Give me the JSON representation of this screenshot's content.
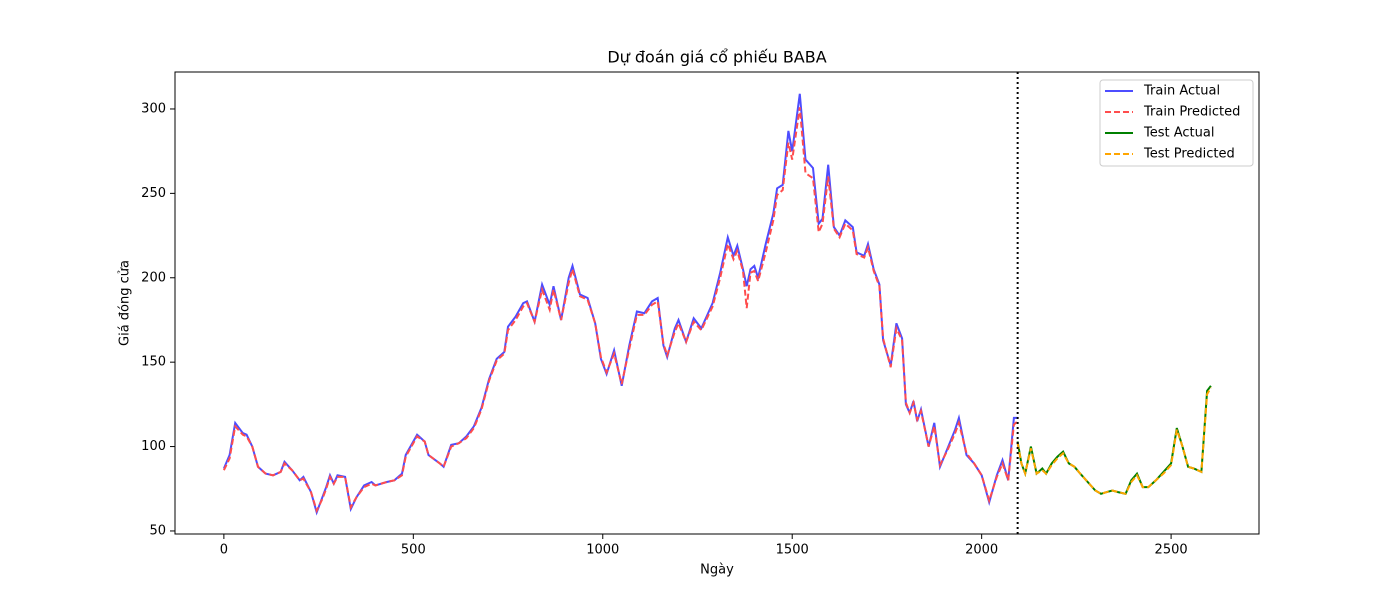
{
  "chart_data": {
    "type": "line",
    "title": "Dự đoán giá cổ phiếu BABA",
    "x_label": "Ngày",
    "y_label": "Giá đóng cửa",
    "xlim": [
      -129,
      2732
    ],
    "ylim": [
      48.2,
      321.9
    ],
    "xticks": [
      0,
      500,
      1000,
      1500,
      2000,
      2500
    ],
    "yticks": [
      50,
      100,
      150,
      200,
      250,
      300
    ],
    "split_x": 2095,
    "legend": "upper right",
    "series": [
      {
        "name": "Train Actual",
        "color": "#4d4dff",
        "style": "solid",
        "x": [
          0,
          15,
          30,
          50,
          60,
          75,
          90,
          110,
          130,
          150,
          160,
          180,
          200,
          210,
          230,
          245,
          260,
          270,
          280,
          290,
          300,
          320,
          335,
          350,
          370,
          390,
          400,
          430,
          450,
          470,
          480,
          500,
          510,
          530,
          540,
          570,
          580,
          600,
          620,
          640,
          660,
          680,
          700,
          720,
          740,
          750,
          770,
          790,
          800,
          820,
          840,
          860,
          870,
          890,
          910,
          920,
          940,
          960,
          980,
          995,
          1010,
          1030,
          1050,
          1070,
          1090,
          1110,
          1130,
          1145,
          1160,
          1170,
          1190,
          1200,
          1220,
          1240,
          1260,
          1290,
          1310,
          1330,
          1345,
          1355,
          1370,
          1380,
          1390,
          1400,
          1410,
          1430,
          1450,
          1460,
          1475,
          1490,
          1500,
          1520,
          1535,
          1555,
          1570,
          1580,
          1595,
          1610,
          1625,
          1640,
          1660,
          1670,
          1690,
          1700,
          1715,
          1730,
          1740,
          1760,
          1775,
          1790,
          1800,
          1810,
          1820,
          1830,
          1840,
          1860,
          1875,
          1890,
          1910,
          1930,
          1940,
          1960,
          1980,
          2000,
          2020,
          2040,
          2055,
          2070,
          2085,
          2095
        ],
        "values": [
          87,
          95,
          114,
          108,
          107,
          100,
          88,
          84,
          83,
          85,
          91,
          86,
          80,
          82,
          73,
          61,
          70,
          76,
          83,
          78,
          83,
          82,
          63,
          70,
          77,
          79,
          77,
          79,
          80,
          84,
          95,
          103,
          107,
          103,
          95,
          90,
          88,
          101,
          102,
          106,
          112,
          123,
          140,
          152,
          156,
          171,
          177,
          185,
          186,
          174,
          196,
          184,
          195,
          175,
          200,
          207,
          190,
          188,
          173,
          152,
          143,
          157,
          136,
          160,
          180,
          179,
          186,
          188,
          160,
          153,
          170,
          175,
          162,
          176,
          170,
          185,
          203,
          224,
          213,
          219,
          205,
          195,
          205,
          207,
          200,
          220,
          238,
          253,
          255,
          287,
          275,
          309,
          270,
          265,
          232,
          235,
          267,
          230,
          225,
          234,
          230,
          215,
          213,
          220,
          205,
          196,
          163,
          148,
          173,
          164,
          125,
          120,
          127,
          115,
          122,
          100,
          114,
          88,
          99,
          110,
          117,
          95,
          90,
          83,
          67,
          83,
          92,
          80,
          117,
          117
        ]
      },
      {
        "name": "Train Predicted",
        "color": "#ff4d4d",
        "style": "dashed",
        "x": [
          0,
          15,
          30,
          50,
          60,
          75,
          90,
          110,
          130,
          150,
          160,
          180,
          200,
          210,
          230,
          245,
          260,
          270,
          280,
          290,
          300,
          320,
          335,
          350,
          370,
          390,
          400,
          430,
          450,
          470,
          480,
          500,
          510,
          530,
          540,
          570,
          580,
          600,
          620,
          640,
          660,
          680,
          700,
          720,
          740,
          750,
          770,
          790,
          800,
          820,
          840,
          860,
          870,
          890,
          910,
          920,
          940,
          960,
          980,
          995,
          1010,
          1030,
          1050,
          1070,
          1090,
          1110,
          1130,
          1145,
          1160,
          1170,
          1190,
          1200,
          1220,
          1240,
          1260,
          1290,
          1310,
          1330,
          1345,
          1355,
          1370,
          1380,
          1390,
          1400,
          1410,
          1430,
          1450,
          1460,
          1475,
          1490,
          1500,
          1520,
          1535,
          1555,
          1570,
          1580,
          1595,
          1610,
          1625,
          1640,
          1660,
          1670,
          1690,
          1700,
          1715,
          1730,
          1740,
          1760,
          1775,
          1790,
          1800,
          1810,
          1820,
          1830,
          1840,
          1860,
          1875,
          1890,
          1910,
          1930,
          1940,
          1960,
          1980,
          2000,
          2020,
          2040,
          2055,
          2070,
          2085,
          2095
        ],
        "values": [
          86,
          93,
          112,
          107,
          106,
          100,
          88,
          84,
          83,
          85,
          90,
          86,
          80,
          81,
          73,
          62,
          69,
          75,
          82,
          78,
          82,
          82,
          64,
          70,
          76,
          78,
          77,
          79,
          80,
          83,
          94,
          102,
          106,
          103,
          95,
          90,
          88,
          100,
          102,
          105,
          111,
          122,
          139,
          151,
          155,
          169,
          175,
          183,
          185,
          174,
          193,
          181,
          193,
          175,
          197,
          205,
          189,
          187,
          173,
          153,
          144,
          155,
          137,
          158,
          178,
          178,
          184,
          186,
          161,
          154,
          168,
          173,
          162,
          174,
          169,
          183,
          200,
          220,
          211,
          216,
          204,
          182,
          203,
          204,
          198,
          215,
          234,
          249,
          252,
          280,
          270,
          301,
          262,
          259,
          227,
          232,
          260,
          229,
          224,
          232,
          228,
          214,
          212,
          218,
          204,
          195,
          164,
          147,
          170,
          163,
          126,
          120,
          126,
          116,
          121,
          100,
          112,
          89,
          98,
          108,
          114,
          96,
          90,
          83,
          68,
          82,
          90,
          80,
          113,
          115
        ]
      },
      {
        "name": "Test Actual",
        "color": "#008000",
        "style": "solid",
        "x": [
          2095,
          2105,
          2115,
          2130,
          2145,
          2160,
          2170,
          2185,
          2200,
          2215,
          2230,
          2245,
          2260,
          2280,
          2300,
          2315,
          2330,
          2345,
          2360,
          2380,
          2395,
          2410,
          2425,
          2440,
          2460,
          2480,
          2500,
          2515,
          2530,
          2545,
          2560,
          2580,
          2595,
          2605
        ],
        "values": [
          103,
          90,
          84,
          100,
          84,
          87,
          84,
          90,
          94,
          97,
          90,
          88,
          84,
          79,
          74,
          72,
          73,
          74,
          73,
          72,
          80,
          84,
          76,
          76,
          80,
          85,
          90,
          111,
          100,
          88,
          87,
          85,
          133,
          136
        ]
      },
      {
        "name": "Test Predicted",
        "color": "#ffa500",
        "style": "dashed",
        "x": [
          2095,
          2105,
          2115,
          2130,
          2145,
          2160,
          2170,
          2185,
          2200,
          2215,
          2230,
          2245,
          2260,
          2280,
          2300,
          2315,
          2330,
          2345,
          2360,
          2380,
          2395,
          2410,
          2425,
          2440,
          2460,
          2480,
          2500,
          2515,
          2530,
          2545,
          2560,
          2580,
          2595,
          2605
        ],
        "values": [
          102,
          90,
          84,
          99,
          84,
          86,
          84,
          89,
          93,
          96,
          90,
          88,
          84,
          79,
          74,
          72,
          73,
          74,
          73,
          72,
          79,
          83,
          76,
          76,
          80,
          84,
          89,
          110,
          100,
          88,
          87,
          85,
          131,
          135
        ]
      }
    ]
  }
}
